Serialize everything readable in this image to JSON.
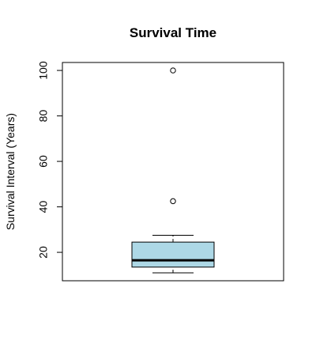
{
  "chart_data": {
    "type": "box",
    "title": "Survival Time",
    "xlabel": "",
    "ylabel": "Survival Interval (Years)",
    "ylim": [
      7.5,
      103.5
    ],
    "yticks": [
      20,
      40,
      60,
      80,
      100
    ],
    "ytick_labels": [
      "20",
      "40",
      "60",
      "80",
      "100"
    ],
    "grid": false,
    "legend": null,
    "box_color": "#add8e6",
    "series": [
      {
        "min": 11,
        "q1": 13.5,
        "median": 16.5,
        "q3": 24.5,
        "max": 27.5,
        "outliers": [
          42.5,
          100
        ]
      }
    ]
  }
}
